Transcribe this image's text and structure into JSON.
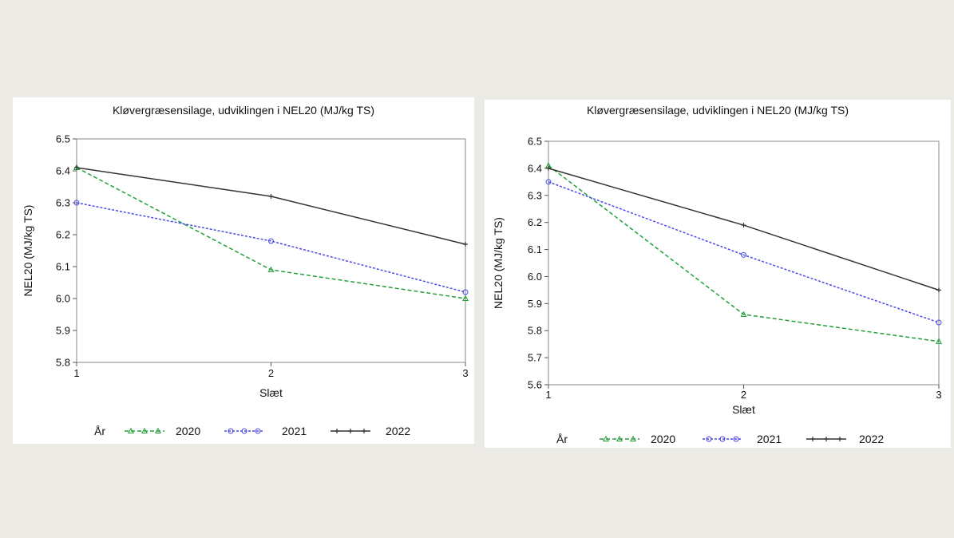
{
  "chart_data": [
    {
      "type": "line",
      "title": "Kløvergræsensilage, udviklingen i NEL20 (MJ/kg TS)",
      "xlabel": "Slæt",
      "ylabel": "NEL20 (MJ/kg TS)",
      "x": [
        1,
        2,
        3
      ],
      "x_tick_labels": [
        "1",
        "2",
        "3"
      ],
      "ylim": [
        5.8,
        6.5
      ],
      "y_ticks": [
        5.8,
        5.9,
        6.0,
        6.1,
        6.2,
        6.3,
        6.4,
        6.5
      ],
      "y_tick_labels": [
        "5.8",
        "5.9",
        "6.0",
        "6.1",
        "6.2",
        "6.3",
        "6.4",
        "6.5"
      ],
      "legend_title": "År",
      "legend_position": "bottom",
      "series": [
        {
          "name": "2020",
          "values": [
            6.41,
            6.09,
            6.0
          ],
          "color": "#22a03a",
          "dash": "dashed",
          "marker": "triangle"
        },
        {
          "name": "2021",
          "values": [
            6.3,
            6.18,
            6.02
          ],
          "color": "#4a4ae8",
          "dash": "dotted",
          "marker": "circle"
        },
        {
          "name": "2022",
          "values": [
            6.41,
            6.32,
            6.17
          ],
          "color": "#333333",
          "dash": "solid",
          "marker": "plus"
        }
      ]
    },
    {
      "type": "line",
      "title": "Kløvergræsensilage, udviklingen i NEL20 (MJ/kg TS)",
      "xlabel": "Slæt",
      "ylabel": "NEL20 (MJ/kg TS)",
      "x": [
        1,
        2,
        3
      ],
      "x_tick_labels": [
        "1",
        "2",
        "3"
      ],
      "ylim": [
        5.6,
        6.5
      ],
      "y_ticks": [
        5.6,
        5.7,
        5.8,
        5.9,
        6.0,
        6.1,
        6.2,
        6.3,
        6.4,
        6.5
      ],
      "y_tick_labels": [
        "5.6",
        "5.7",
        "5.8",
        "5.9",
        "6.0",
        "6.1",
        "6.2",
        "6.3",
        "6.4",
        "6.5"
      ],
      "legend_title": "År",
      "legend_position": "bottom",
      "series": [
        {
          "name": "2020",
          "values": [
            6.41,
            5.86,
            5.76
          ],
          "color": "#22a03a",
          "dash": "dashed",
          "marker": "triangle"
        },
        {
          "name": "2021",
          "values": [
            6.35,
            6.08,
            5.83
          ],
          "color": "#4a4ae8",
          "dash": "dotted",
          "marker": "circle"
        },
        {
          "name": "2022",
          "values": [
            6.4,
            6.19,
            5.95
          ],
          "color": "#333333",
          "dash": "solid",
          "marker": "plus"
        }
      ]
    }
  ]
}
